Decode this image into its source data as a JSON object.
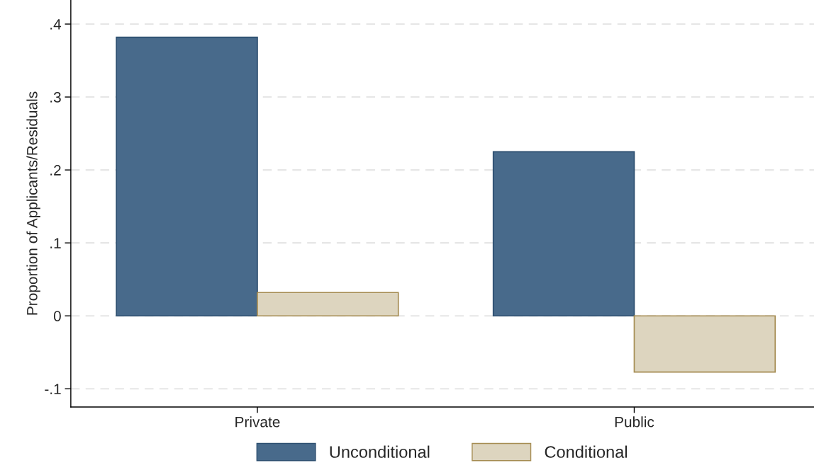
{
  "chart_data": {
    "type": "bar",
    "ylabel": "Proportion of Applicants/Residuals",
    "categories": [
      "Private",
      "Public"
    ],
    "series": [
      {
        "name": "Unconditional",
        "color": "#486a8b",
        "values": [
          0.382,
          0.225
        ]
      },
      {
        "name": "Conditional",
        "color": "#ddd5bf",
        "values": [
          0.032,
          -0.077
        ]
      }
    ],
    "ylim": [
      -0.125,
      0.433
    ],
    "yticks": [
      {
        "value": -0.1,
        "label": "-.1"
      },
      0,
      {
        "value": 0.1,
        "label": ".1"
      },
      {
        "value": 0.2,
        "label": ".2"
      },
      {
        "value": 0.3,
        "label": ".3"
      },
      {
        "value": 0.4,
        "label": ".4"
      }
    ],
    "grid": "y",
    "legend": "bottom"
  }
}
